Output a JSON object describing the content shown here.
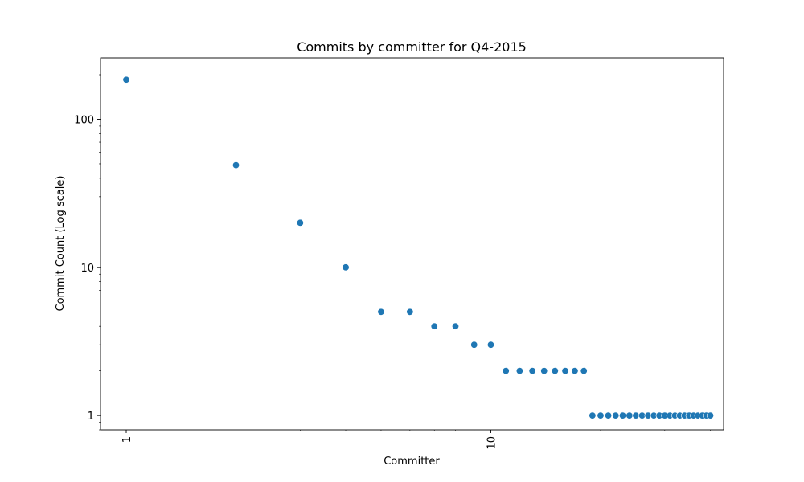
{
  "chart_data": {
    "type": "scatter",
    "title": "Commits by committer for Q4-2015",
    "xlabel": "Committer",
    "ylabel": "Commit Count (Log scale)",
    "xscale": "log",
    "yscale": "log",
    "xlim": [
      0.85,
      43.5
    ],
    "ylim": [
      0.8,
      260
    ],
    "xticks": [
      {
        "value": 1,
        "label": "1"
      },
      {
        "value": 10,
        "label": "10"
      }
    ],
    "yticks": [
      {
        "value": 1,
        "label": "1"
      },
      {
        "value": 10,
        "label": "10"
      },
      {
        "value": 100,
        "label": "100"
      }
    ],
    "marker_color": "#1f77b4",
    "grid": false,
    "x": [
      1,
      2,
      3,
      4,
      5,
      6,
      7,
      8,
      9,
      10,
      11,
      12,
      13,
      14,
      15,
      16,
      17,
      18,
      19,
      20,
      21,
      22,
      23,
      24,
      25,
      26,
      27,
      28,
      29,
      30,
      31,
      32,
      33,
      34,
      35,
      36,
      37,
      38,
      39,
      40
    ],
    "y": [
      185,
      49,
      20,
      10,
      5,
      5,
      4,
      4,
      3,
      3,
      2,
      2,
      2,
      2,
      2,
      2,
      2,
      2,
      1,
      1,
      1,
      1,
      1,
      1,
      1,
      1,
      1,
      1,
      1,
      1,
      1,
      1,
      1,
      1,
      1,
      1,
      1,
      1,
      1,
      1
    ]
  }
}
